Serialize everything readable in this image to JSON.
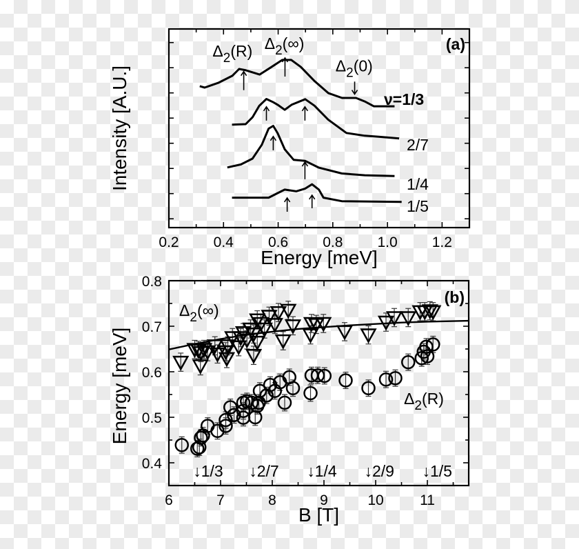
{
  "chart_data": [
    {
      "panel_label": "(a)",
      "type": "line",
      "xlabel": "Energy [meV]",
      "ylabel": "Intensity [A.U.]",
      "xlim": [
        0.2,
        1.3
      ],
      "ylim": [
        0,
        7.89
      ],
      "x_ticks": [
        "0.2",
        "0.4",
        "0.6",
        "0.8",
        "1.0",
        "1.2"
      ],
      "y_tick_labels_shown": false,
      "grid": false,
      "series": [
        {
          "name": "ν=1/3",
          "label_bold": true,
          "x": [
            0.313,
            0.331,
            0.381,
            0.432,
            0.457,
            0.482,
            0.532,
            0.573,
            0.615,
            0.648,
            0.683,
            0.734,
            0.784,
            0.834,
            0.885,
            0.917,
            0.95,
            1.026
          ],
          "y": [
            5.62,
            5.56,
            5.75,
            6.03,
            6.3,
            6.25,
            6.08,
            6.36,
            6.66,
            6.66,
            6.38,
            5.81,
            5.34,
            5.15,
            5.15,
            5.01,
            4.82,
            4.82
          ]
        },
        {
          "name": "2/7",
          "x": [
            0.431,
            0.481,
            0.506,
            0.531,
            0.557,
            0.582,
            0.598,
            0.624,
            0.649,
            0.699,
            0.733,
            0.783,
            0.85,
            0.917,
            0.968,
            1.043
          ],
          "y": [
            4.09,
            4.11,
            4.38,
            4.84,
            5.11,
            4.98,
            4.88,
            4.68,
            4.88,
            5.1,
            4.84,
            4.29,
            3.76,
            3.65,
            3.61,
            3.54
          ]
        },
        {
          "name": "1/4",
          "x": [
            0.414,
            0.464,
            0.506,
            0.54,
            0.565,
            0.582,
            0.598,
            0.624,
            0.657,
            0.699,
            0.749,
            0.833,
            0.917,
            1.026
          ],
          "y": [
            2.39,
            2.51,
            2.74,
            3.29,
            3.93,
            4.04,
            3.75,
            3.11,
            2.69,
            2.65,
            2.38,
            2.15,
            2.08,
            2.05
          ]
        },
        {
          "name": "1/5",
          "x": [
            0.431,
            0.565,
            0.598,
            0.624,
            0.666,
            0.699,
            0.724,
            0.749,
            0.766,
            0.833,
            1.052
          ],
          "y": [
            1.19,
            1.19,
            1.37,
            1.51,
            1.44,
            1.55,
            1.72,
            1.51,
            1.19,
            1.05,
            1.02
          ]
        }
      ],
      "arrows": [
        {
          "x": 0.474,
          "y_from": 5.46,
          "y_to": 6.2,
          "direction": "up"
        },
        {
          "x": 0.625,
          "y_from": 6.0,
          "y_to": 6.74,
          "direction": "up"
        },
        {
          "x": 0.88,
          "y_from": 5.8,
          "y_to": 5.3,
          "direction": "down"
        },
        {
          "x": 0.557,
          "y_from": 4.25,
          "y_to": 4.8,
          "direction": "up"
        },
        {
          "x": 0.698,
          "y_from": 4.25,
          "y_to": 4.8,
          "direction": "up"
        },
        {
          "x": 0.582,
          "y_from": 3.07,
          "y_to": 3.62,
          "direction": "up"
        },
        {
          "x": 0.698,
          "y_from": 1.92,
          "y_to": 2.6,
          "direction": "up"
        },
        {
          "x": 0.633,
          "y_from": 0.63,
          "y_to": 1.18,
          "direction": "up"
        },
        {
          "x": 0.724,
          "y_from": 0.77,
          "y_to": 1.29,
          "direction": "up"
        }
      ],
      "annotations": [
        {
          "base": "Δ",
          "sub": "2",
          "rest": "(R)",
          "x": 0.36,
          "y": 6.8
        },
        {
          "base": "Δ",
          "sub": "2",
          "rest": "(∞)",
          "x": 0.55,
          "y": 7.1
        },
        {
          "base": "Δ",
          "sub": "2",
          "rest": "(0)",
          "x": 0.81,
          "y": 6.2
        }
      ]
    },
    {
      "panel_label": "(b)",
      "type": "scatter",
      "xlabel": "B [T]",
      "ylabel": "Energy [meV]",
      "xlim": [
        6,
        11.8
      ],
      "ylim": [
        0.35,
        0.8
      ],
      "x_ticks": [
        "6",
        "7",
        "8",
        "9",
        "10",
        "11"
      ],
      "y_ticks": [
        "0.4",
        "0.5",
        "0.6",
        "0.7",
        "0.8"
      ],
      "grid": false,
      "series": [
        {
          "name": "Δ2(∞)",
          "marker": "down-triangle",
          "label": {
            "base": "Δ",
            "sub": "2",
            "rest": "(∞)"
          },
          "yerr": 0.02,
          "x": [
            6.23,
            6.61,
            6.5,
            6.57,
            6.62,
            6.68,
            6.75,
            6.94,
            6.89,
            7.1,
            7.12,
            7.14,
            7.23,
            7.35,
            7.39,
            7.44,
            7.51,
            7.58,
            7.64,
            7.64,
            7.71,
            7.71,
            7.78,
            7.85,
            7.94,
            8.05,
            8.12,
            8.21,
            8.31,
            8.4,
            8.74,
            8.76,
            8.85,
            8.99,
            9.4,
            9.86,
            10.2,
            10.36,
            10.63,
            10.86,
            10.95,
            11.05,
            11.11
          ],
          "y": [
            0.621,
            0.613,
            0.649,
            0.647,
            0.642,
            0.649,
            0.644,
            0.639,
            0.657,
            0.644,
            0.629,
            0.657,
            0.675,
            0.655,
            0.675,
            0.686,
            0.67,
            0.694,
            0.683,
            0.636,
            0.665,
            0.714,
            0.706,
            0.694,
            0.722,
            0.704,
            0.73,
            0.668,
            0.735,
            0.701,
            0.681,
            0.706,
            0.704,
            0.706,
            0.688,
            0.681,
            0.709,
            0.719,
            0.719,
            0.732,
            0.732,
            0.734,
            0.732
          ]
        },
        {
          "name": "Δ2(R)",
          "marker": "circle",
          "label": {
            "base": "Δ",
            "sub": "2",
            "rest": "(R)"
          },
          "yerr": 0.018,
          "x": [
            6.25,
            6.55,
            6.59,
            6.62,
            6.66,
            6.75,
            6.94,
            7.1,
            7.1,
            7.19,
            7.26,
            7.44,
            7.44,
            7.44,
            7.51,
            7.6,
            7.67,
            7.71,
            7.74,
            7.76,
            7.89,
            7.96,
            8.05,
            8.15,
            8.24,
            8.33,
            8.4,
            8.74,
            8.76,
            8.88,
            9.01,
            9.42,
            9.86,
            10.2,
            10.38,
            10.63,
            10.89,
            10.93,
            10.98,
            11.0,
            11.11
          ],
          "y": [
            0.439,
            0.431,
            0.434,
            0.455,
            0.46,
            0.481,
            0.47,
            0.481,
            0.494,
            0.522,
            0.505,
            0.499,
            0.514,
            0.532,
            0.535,
            0.532,
            0.5,
            0.525,
            0.532,
            0.558,
            0.548,
            0.571,
            0.558,
            0.577,
            0.532,
            0.588,
            0.564,
            0.553,
            0.592,
            0.592,
            0.591,
            0.581,
            0.564,
            0.583,
            0.586,
            0.621,
            0.63,
            0.644,
            0.655,
            0.634,
            0.66
          ]
        },
        {
          "type": "line",
          "marker": "none",
          "x": [
            6,
            6.5,
            7,
            7.5,
            8,
            8.5,
            9,
            9.5,
            10,
            10.5,
            11,
            11.8
          ],
          "y": [
            0.649,
            0.661,
            0.672,
            0.681,
            0.688,
            0.694,
            0.698,
            0.702,
            0.705,
            0.708,
            0.71,
            0.712
          ]
        }
      ],
      "filling_factor_markers": [
        {
          "label": "↓1/3",
          "B": 6.59
        },
        {
          "label": "↓2/7",
          "B": 7.67
        },
        {
          "label": "↓1/4",
          "B": 8.79
        },
        {
          "label": "↓2/9",
          "B": 9.9
        },
        {
          "label": "↓1/5",
          "B": 11.02
        }
      ]
    }
  ]
}
